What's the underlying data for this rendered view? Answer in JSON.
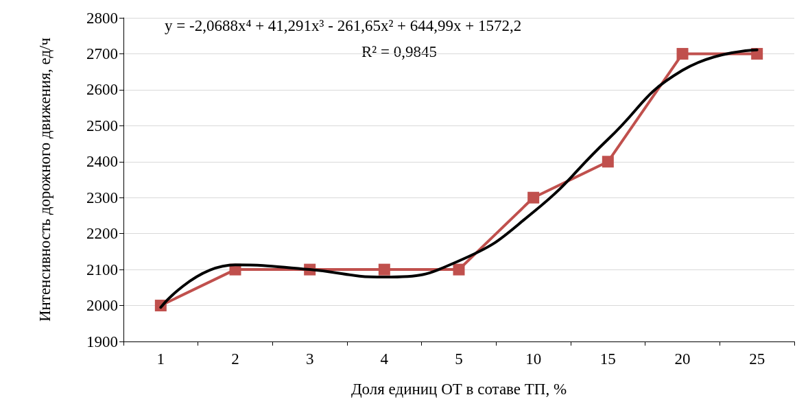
{
  "chart_data": {
    "type": "line",
    "xlabel": "Доля единиц ОТ в сотаве ТП, %",
    "ylabel": "Интенсивность дорожного движения, ед/ч",
    "categories": [
      "1",
      "2",
      "3",
      "4",
      "5",
      "10",
      "15",
      "20",
      "25"
    ],
    "ylim": [
      1900,
      2800
    ],
    "yticks": [
      1900,
      2000,
      2100,
      2200,
      2300,
      2400,
      2500,
      2600,
      2700,
      2800
    ],
    "grid": "y",
    "series": [
      {
        "color": "#c0504d",
        "marker": "square",
        "values": [
          2000,
          2100,
          2100,
          2100,
          2100,
          2300,
          2400,
          2700,
          2700
        ]
      },
      {
        "type": "line",
        "color": "#000000",
        "marker": "none",
        "x": [
          "1",
          "2",
          "3",
          "4",
          "5",
          "10",
          "15",
          "20",
          "25"
        ],
        "values": [
          1995,
          2113,
          2100,
          2079,
          2124,
          2260,
          2462,
          2654,
          2711
        ]
      }
    ],
    "annotations": [
      "y = -2,0688x⁴ + 41,291x³ - 261,65x² + 644,99x + 1572,2",
      "R² = 0,9845"
    ]
  }
}
